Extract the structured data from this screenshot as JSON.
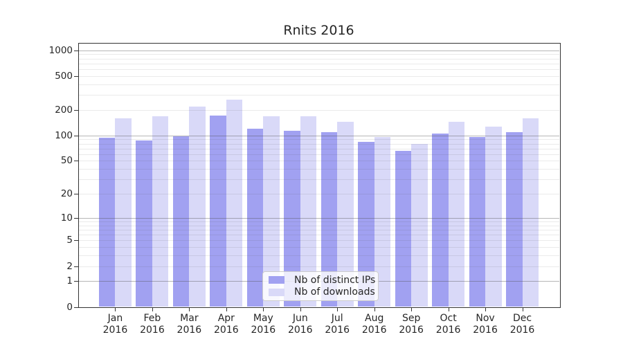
{
  "chart_data": {
    "type": "bar",
    "title": "Rnits 2016",
    "categories": [
      "Jan 2016",
      "Feb 2016",
      "Mar 2016",
      "Apr 2016",
      "May 2016",
      "Jun 2016",
      "Jul 2016",
      "Aug 2016",
      "Sep 2016",
      "Oct 2016",
      "Nov 2016",
      "Dec 2016"
    ],
    "series": [
      {
        "name": "Nb of distinct IPs",
        "color": "#a1a1f1",
        "values": [
          94,
          87,
          97,
          172,
          120,
          114,
          109,
          84,
          66,
          105,
          96,
          110
        ]
      },
      {
        "name": "Nb of downloads",
        "color": "#d9d9f8",
        "values": [
          158,
          168,
          217,
          264,
          168,
          170,
          144,
          95,
          80,
          145,
          127,
          158
        ]
      }
    ],
    "y_axis": {
      "scale": "log1p",
      "ticks": [
        0,
        1,
        2,
        5,
        10,
        20,
        50,
        100,
        200,
        500,
        1000
      ],
      "major_gridlines": [
        1,
        10,
        100,
        1000
      ],
      "grid": true
    },
    "x_axis": {
      "tick_label_line2": "2016"
    },
    "legend": {
      "position": "lower center",
      "items": [
        "Nb of distinct IPs",
        "Nb of downloads"
      ]
    },
    "colors": {
      "background": "#ffffff",
      "text": "#262626",
      "spine": "#333333",
      "bar_dark": "#a1a1f1",
      "bar_light": "#d9d9f8"
    }
  }
}
